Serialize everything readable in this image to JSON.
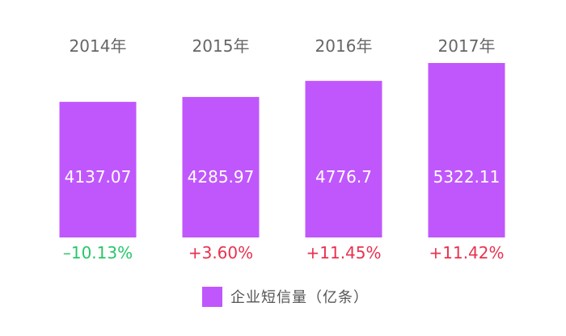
{
  "chart_data": {
    "type": "bar",
    "categories": [
      "2014年",
      "2015年",
      "2016年",
      "2017年"
    ],
    "series": [
      {
        "name": "企业短信量（亿条）",
        "values": [
          4137.07,
          4285.97,
          4776.7,
          5322.11
        ]
      }
    ],
    "value_labels": [
      "4137.07",
      "4285.97",
      "4776.7",
      "5322.11"
    ],
    "growth_labels": [
      "–10.13%",
      "+3.60%",
      "+11.45%",
      "+11.42%"
    ],
    "growth_values": [
      -10.13,
      3.6,
      11.45,
      11.42
    ],
    "legend_label": "企业短信量（亿条）",
    "legend_position": "bottom-center",
    "grid": false,
    "axes_visible": false
  },
  "colors": {
    "bar": "#c057fc",
    "category_text": "#666666",
    "value_text": "#ffffff",
    "positive_growth": "#e8324f",
    "negative_growth": "#27c76a",
    "legend_text": "#555555"
  }
}
